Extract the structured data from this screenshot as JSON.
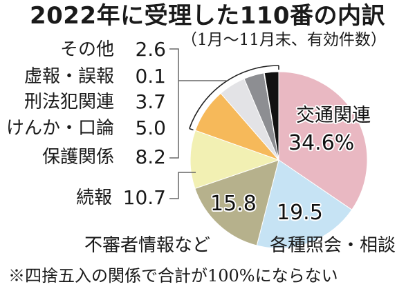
{
  "title": "2022年に受理した110番の内訳",
  "subtitle": "（1月〜11月末、有効件数）",
  "legend": [
    {
      "label": "その他",
      "value": "2.6"
    },
    {
      "label": "虚報・誤報",
      "value": "0.1"
    },
    {
      "label": "刑法犯関連",
      "value": "3.7"
    },
    {
      "label": "けんか・口論",
      "value": "5.0"
    },
    {
      "label": "保護関係",
      "value": "8.2"
    },
    {
      "label": "続報",
      "value": "10.7"
    }
  ],
  "pie_labels": {
    "traffic": {
      "label": "交通関連",
      "value": "34.6%"
    },
    "inquiry": {
      "label": "各種照会・相談",
      "value": "19.5"
    },
    "suspicious": {
      "label": "不審者情報など",
      "value": "15.8"
    }
  },
  "footnote": "※四捨五入の関係で合計が100%にならない",
  "chart_data": {
    "type": "pie",
    "title": "2022年に受理した110番の内訳",
    "subtitle": "（1月〜11月末、有効件数）",
    "unit": "%",
    "start": "12 o'clock, clockwise",
    "categories": [
      "交通関連",
      "各種照会・相談",
      "不審者情報など",
      "続報",
      "保護関係",
      "けんか・口論",
      "刑法犯関連",
      "虚報・誤報",
      "その他"
    ],
    "values": [
      34.6,
      19.5,
      15.8,
      10.7,
      8.2,
      5.0,
      3.7,
      0.1,
      2.6
    ],
    "colors": [
      "#E9B8C2",
      "#C6E3F4",
      "#B6B18C",
      "#F2F0B3",
      "#F6B95A",
      "#E3E3E6",
      "#8D8E92",
      "#4A4A4A",
      "#121212"
    ],
    "annotation": "※四捨五入の関係で合計が100%にならない"
  }
}
